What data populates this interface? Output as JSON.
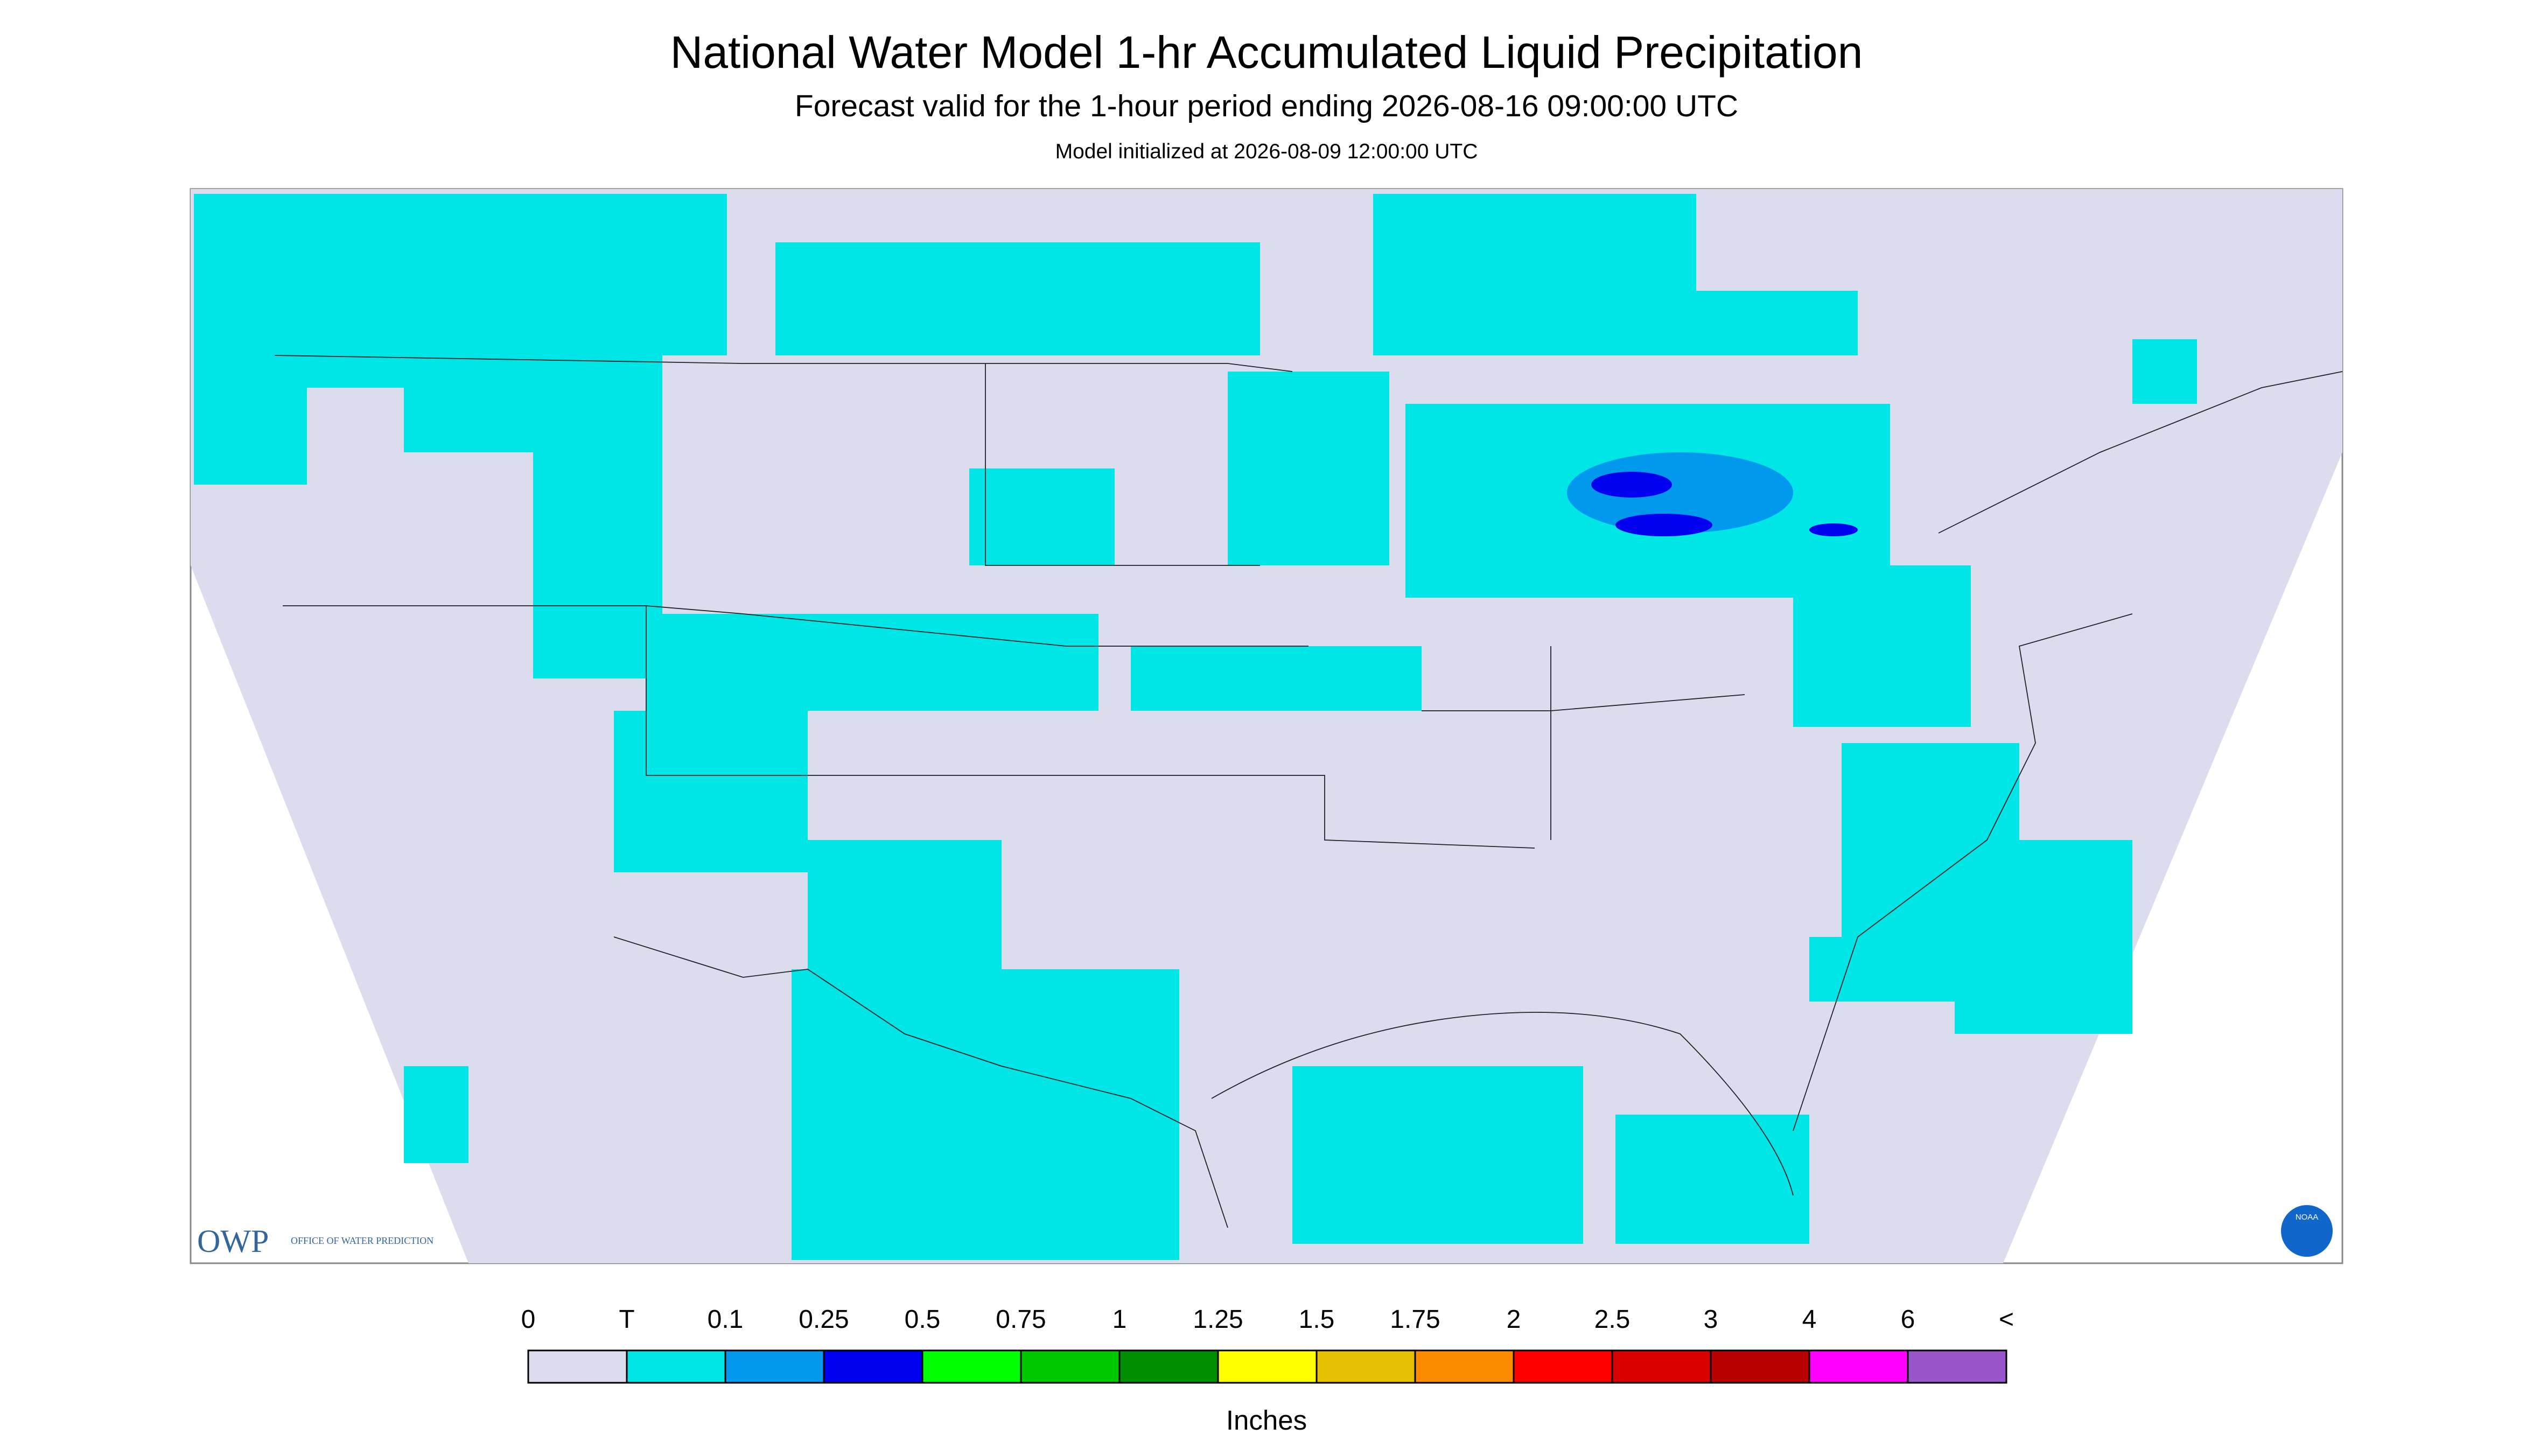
{
  "header": {
    "title": "National Water Model 1-hr Accumulated Liquid Precipitation",
    "subtitle": "Forecast valid for the 1-hour period ending 2026-08-16 09:00:00 UTC",
    "init": "Model initialized at 2026-08-09 12:00:00 UTC"
  },
  "legend": {
    "labels": [
      "0",
      "T",
      "0.1",
      "0.25",
      "0.5",
      "0.75",
      "1",
      "1.25",
      "1.5",
      "1.75",
      "2",
      "2.5",
      "3",
      "4",
      "6",
      "<"
    ],
    "colors": [
      "#dcdcef",
      "#00e5e5",
      "#0099ee",
      "#0000ee",
      "#00ff00",
      "#00c800",
      "#008f00",
      "#ffff00",
      "#e6bf00",
      "#ff8c00",
      "#ff0000",
      "#d80000",
      "#b80000",
      "#ff00ff",
      "#9955cc"
    ],
    "unit": "Inches"
  },
  "logos": {
    "owp": "OWP",
    "owp_text": "OFFICE OF WATER PREDICTION",
    "noaa": "NOAA"
  }
}
